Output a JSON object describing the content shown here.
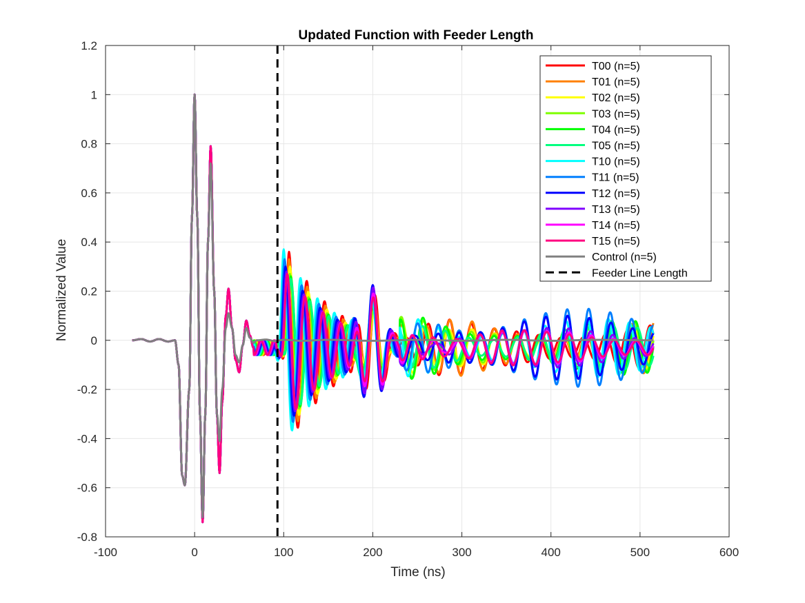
{
  "chart_data": {
    "type": "line",
    "title": "Updated Function with Feeder Length",
    "xlabel": "Time (ns)",
    "ylabel": "Normalized Value",
    "xlim": [
      -100,
      600
    ],
    "ylim": [
      -0.8,
      1.2
    ],
    "x_ticks": [
      "-100",
      "0",
      "100",
      "200",
      "300",
      "400",
      "500",
      "600"
    ],
    "y_ticks": [
      "-0.8",
      "-0.6",
      "-0.4",
      "-0.2",
      "0",
      "0.2",
      "0.4",
      "0.6",
      "0.8",
      "1",
      "1.2"
    ],
    "grid": true,
    "legend_position": "top-right",
    "x_range": [
      -70,
      515
    ],
    "common_pulse": [
      [
        -70,
        0
      ],
      [
        -60,
        0.005
      ],
      [
        -50,
        -0.005
      ],
      [
        -40,
        0.005
      ],
      [
        -30,
        -0.005
      ],
      [
        -22,
        0
      ],
      [
        -18,
        -0.1
      ],
      [
        -14,
        -0.55
      ],
      [
        -11,
        -0.59
      ],
      [
        -6,
        -0.2
      ],
      [
        -3,
        0.5
      ],
      [
        0,
        1.0
      ],
      [
        3,
        0.5
      ],
      [
        6,
        -0.3
      ],
      [
        9,
        -0.74
      ],
      [
        12,
        -0.3
      ],
      [
        15,
        0.4
      ],
      [
        18,
        0.79
      ],
      [
        22,
        0.2
      ],
      [
        25,
        -0.3
      ],
      [
        28,
        -0.54
      ],
      [
        31,
        -0.25
      ],
      [
        35,
        0.1
      ],
      [
        38,
        0.21
      ],
      [
        42,
        0.05
      ],
      [
        46,
        -0.08
      ],
      [
        50,
        -0.13
      ],
      [
        54,
        -0.02
      ],
      [
        58,
        0.08
      ],
      [
        62,
        0.02
      ],
      [
        66,
        -0.03
      ]
    ],
    "control_pulse": [
      [
        -70,
        0
      ],
      [
        -60,
        0.005
      ],
      [
        -50,
        -0.005
      ],
      [
        -40,
        0.005
      ],
      [
        -30,
        -0.005
      ],
      [
        -22,
        0
      ],
      [
        -18,
        -0.1
      ],
      [
        -14,
        -0.55
      ],
      [
        -11,
        -0.59
      ],
      [
        -6,
        -0.2
      ],
      [
        -3,
        0.5
      ],
      [
        0,
        1.0
      ],
      [
        3,
        0.5
      ],
      [
        6,
        -0.3
      ],
      [
        9,
        -0.72
      ],
      [
        12,
        -0.3
      ],
      [
        15,
        0.4
      ],
      [
        18,
        0.72
      ],
      [
        22,
        0.2
      ],
      [
        25,
        -0.3
      ],
      [
        28,
        -0.41
      ],
      [
        31,
        -0.2
      ],
      [
        35,
        0.05
      ],
      [
        38,
        0.11
      ],
      [
        42,
        0.05
      ],
      [
        46,
        -0.06
      ],
      [
        50,
        -0.09
      ],
      [
        54,
        -0.02
      ],
      [
        58,
        0.05
      ],
      [
        62,
        0.01
      ],
      [
        66,
        -0.01
      ],
      [
        70,
        0
      ],
      [
        80,
        0.003
      ],
      [
        90,
        -0.003
      ],
      [
        100,
        0.002
      ],
      [
        120,
        -0.002
      ],
      [
        150,
        0.002
      ],
      [
        200,
        -0.002
      ],
      [
        250,
        0.002
      ],
      [
        300,
        -0.002
      ],
      [
        350,
        0.002
      ],
      [
        400,
        -0.002
      ],
      [
        450,
        0.002
      ],
      [
        515,
        0
      ]
    ],
    "series": [
      {
        "name": "T00 (n=5)",
        "color": "#ff0000",
        "delay": 106,
        "amp": 0.39,
        "period": 20,
        "late_amp": 0.1,
        "phase": 0.0
      },
      {
        "name": "T01 (n=5)",
        "color": "#ff7f00",
        "delay": 106,
        "amp": 0.36,
        "period": 20.5,
        "late_amp": 0.11,
        "phase": 0.4
      },
      {
        "name": "T02 (n=5)",
        "color": "#ffff00",
        "delay": 107,
        "amp": 0.33,
        "period": 20.8,
        "late_amp": 0.09,
        "phase": 0.8
      },
      {
        "name": "T03 (n=5)",
        "color": "#7fff00",
        "delay": 107,
        "amp": 0.3,
        "period": 21,
        "late_amp": 0.1,
        "phase": 1.2
      },
      {
        "name": "T04 (n=5)",
        "color": "#00ff00",
        "delay": 108,
        "amp": 0.29,
        "period": 21.2,
        "late_amp": 0.11,
        "phase": 1.6
      },
      {
        "name": "T05 (n=5)",
        "color": "#00ff7f",
        "delay": 108,
        "amp": 0.28,
        "period": 21.5,
        "late_amp": 0.09,
        "phase": 2.0
      },
      {
        "name": "T10 (n=5)",
        "color": "#00ffff",
        "delay": 100,
        "amp": 0.4,
        "period": 19,
        "late_amp": 0.12,
        "phase": 2.4
      },
      {
        "name": "T11 (n=5)",
        "color": "#007fff",
        "delay": 101,
        "amp": 0.36,
        "period": 19.3,
        "late_amp": 0.16,
        "phase": 2.8
      },
      {
        "name": "T12 (n=5)",
        "color": "#0000ff",
        "delay": 102,
        "amp": 0.33,
        "period": 19.5,
        "late_amp": 0.13,
        "phase": 3.2
      },
      {
        "name": "T13 (n=5)",
        "color": "#7f00ff",
        "delay": 103,
        "amp": 0.31,
        "period": 19.8,
        "late_amp": 0.08,
        "phase": 3.6
      },
      {
        "name": "T14 (n=5)",
        "color": "#ff00ff",
        "delay": 104,
        "amp": 0.3,
        "period": 20,
        "late_amp": 0.07,
        "phase": 4.0
      },
      {
        "name": "T15 (n=5)",
        "color": "#ff0080",
        "delay": 104,
        "amp": 0.3,
        "period": 20.2,
        "late_amp": 0.07,
        "phase": 4.4
      },
      {
        "name": "Control (n=5)",
        "color": "#808080",
        "control": true
      }
    ],
    "feeder_line": {
      "name": "Feeder Line Length",
      "x": 93,
      "color": "#000000"
    }
  }
}
